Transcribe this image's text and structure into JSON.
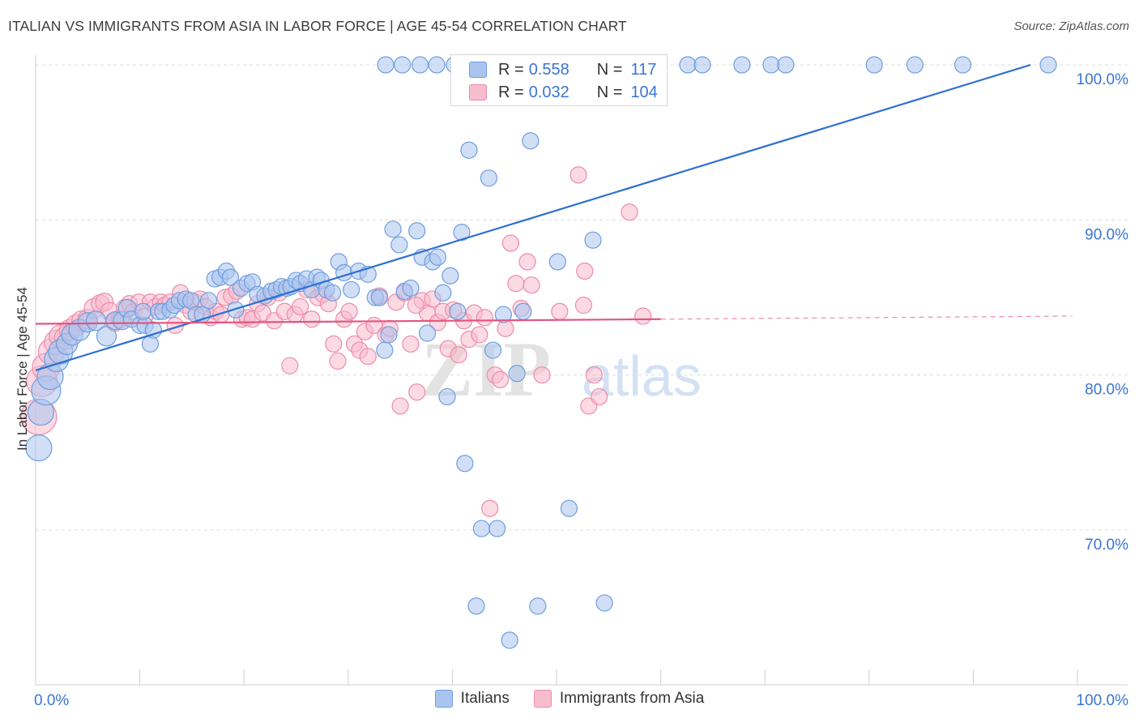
{
  "header": {
    "title": "ITALIAN VS IMMIGRANTS FROM ASIA IN LABOR FORCE | AGE 45-54 CORRELATION CHART",
    "source": "Source: ZipAtlas.com"
  },
  "watermark": {
    "zip": "ZIP",
    "atlas": "atlas"
  },
  "legend_box": {
    "rows": [
      {
        "r_label": "R = ",
        "r_value": "0.558",
        "n_label": "N = ",
        "n_value": "117"
      },
      {
        "r_label": "R = ",
        "r_value": "0.032",
        "n_label": "N = ",
        "n_value": "104"
      }
    ]
  },
  "bottom_legend": {
    "items": [
      "Italians",
      "Immigrants from Asia"
    ]
  },
  "colors": {
    "italians_fill": "#a9c5ef",
    "italians_stroke": "#6f9de0",
    "italians_line": "#2f6fd1",
    "asia_fill": "#f7bccd",
    "asia_stroke": "#ee8ba8",
    "asia_line": "#e4557f",
    "axis_text": "#3a74d4",
    "grid": "#dcdcdc"
  },
  "chart_data": {
    "type": "scatter",
    "title": "ITALIAN VS IMMIGRANTS FROM ASIA IN LABOR FORCE | AGE 45-54 CORRELATION CHART",
    "xlabel": "",
    "ylabel": "In Labor Force | Age 45-54",
    "xlim": [
      0,
      100
    ],
    "ylim": [
      60.5,
      101.5
    ],
    "x_tick_labels": [
      "0.0%",
      "100.0%"
    ],
    "y_ticks": [
      70,
      80,
      90,
      100
    ],
    "y_tick_labels": [
      "70.0%",
      "80.0%",
      "90.0%",
      "100.0%"
    ],
    "grid": true,
    "legend_placement": "bottom-center",
    "series": [
      {
        "name": "Italians",
        "r": 0.558,
        "n": 117,
        "trend": {
          "x": [
            0,
            95.5
          ],
          "y": [
            80.3,
            100.0
          ]
        },
        "points": [
          [
            0.3,
            75.3,
            1.6
          ],
          [
            0.5,
            77.6,
            1.6
          ],
          [
            1.0,
            79.0,
            1.8
          ],
          [
            1.4,
            79.9,
            1.6
          ],
          [
            2.0,
            81.0,
            1.5
          ],
          [
            2.4,
            81.5,
            1.5
          ],
          [
            3.0,
            82.0,
            1.3
          ],
          [
            3.5,
            82.6,
            1.3
          ],
          [
            4.2,
            82.9,
            1.3
          ],
          [
            5.0,
            83.4,
            1.2
          ],
          [
            5.8,
            83.5,
            1.2
          ],
          [
            6.8,
            82.5,
            1.2
          ],
          [
            7.6,
            83.5,
            1.1
          ],
          [
            8.3,
            83.5,
            1.1
          ],
          [
            8.8,
            84.3,
            1.1
          ],
          [
            9.2,
            83.6,
            1.0
          ],
          [
            10.0,
            83.2,
            1.0
          ],
          [
            10.5,
            83.2,
            1.0
          ],
          [
            10.3,
            84.1,
            1.0
          ],
          [
            11.0,
            82.0,
            1.0
          ],
          [
            11.3,
            82.9,
            1.0
          ],
          [
            11.8,
            84.1,
            1.0
          ],
          [
            12.2,
            84.1,
            1.0
          ],
          [
            12.9,
            84.2,
            1.0
          ],
          [
            13.3,
            84.5,
            1.0
          ],
          [
            13.8,
            84.8,
            1.0
          ],
          [
            14.4,
            84.9,
            1.0
          ],
          [
            14.9,
            84.8,
            1.0
          ],
          [
            15.4,
            83.9,
            1.0
          ],
          [
            16.0,
            83.9,
            1.0
          ],
          [
            16.6,
            84.8,
            1.0
          ],
          [
            17.2,
            86.2,
            1.0
          ],
          [
            17.7,
            86.3,
            1.0
          ],
          [
            18.3,
            86.7,
            1.0
          ],
          [
            18.7,
            86.3,
            1.0
          ],
          [
            19.2,
            84.2,
            1.0
          ],
          [
            19.7,
            85.6,
            1.0
          ],
          [
            20.3,
            85.9,
            1.0
          ],
          [
            20.8,
            86.0,
            1.0
          ],
          [
            21.3,
            85.2,
            1.0
          ],
          [
            22.0,
            85.1,
            1.0
          ],
          [
            22.6,
            85.4,
            1.0
          ],
          [
            23.1,
            85.5,
            1.0
          ],
          [
            23.6,
            85.7,
            1.0
          ],
          [
            24.1,
            85.6,
            1.0
          ],
          [
            24.5,
            85.7,
            1.0
          ],
          [
            25.0,
            86.1,
            1.0
          ],
          [
            25.4,
            85.9,
            1.0
          ],
          [
            26.0,
            86.2,
            1.0
          ],
          [
            26.5,
            85.5,
            1.0
          ],
          [
            27.0,
            86.3,
            1.0
          ],
          [
            27.4,
            86.1,
            1.0
          ],
          [
            27.9,
            85.5,
            1.0
          ],
          [
            28.5,
            85.3,
            1.0
          ],
          [
            29.1,
            87.3,
            1.0
          ],
          [
            29.6,
            86.6,
            1.0
          ],
          [
            30.3,
            85.5,
            1.0
          ],
          [
            31.0,
            86.7,
            1.0
          ],
          [
            31.9,
            86.5,
            1.0
          ],
          [
            32.6,
            85.0,
            1.0
          ],
          [
            33.0,
            85.0,
            1.0
          ],
          [
            33.5,
            81.6,
            1.0
          ],
          [
            33.9,
            82.6,
            1.0
          ],
          [
            34.3,
            89.4,
            1.0
          ],
          [
            34.9,
            88.4,
            1.0
          ],
          [
            35.4,
            85.4,
            1.0
          ],
          [
            36.0,
            85.6,
            1.0
          ],
          [
            36.6,
            89.3,
            1.0
          ],
          [
            37.1,
            87.6,
            1.0
          ],
          [
            37.6,
            82.7,
            1.0
          ],
          [
            38.1,
            87.3,
            1.0
          ],
          [
            38.6,
            87.6,
            1.0
          ],
          [
            39.1,
            85.3,
            1.0
          ],
          [
            39.5,
            78.6,
            1.0
          ],
          [
            39.8,
            86.4,
            1.0
          ],
          [
            40.5,
            84.1,
            1.0
          ],
          [
            40.9,
            89.2,
            1.0
          ],
          [
            41.2,
            74.3,
            1.0
          ],
          [
            41.6,
            94.5,
            1.0
          ],
          [
            42.3,
            65.1,
            1.0
          ],
          [
            42.8,
            70.1,
            1.0
          ],
          [
            43.5,
            92.7,
            1.0
          ],
          [
            43.9,
            81.6,
            1.0
          ],
          [
            44.3,
            70.1,
            1.0
          ],
          [
            44.9,
            83.9,
            1.0
          ],
          [
            45.5,
            62.9,
            1.0
          ],
          [
            46.2,
            80.1,
            1.0
          ],
          [
            46.8,
            84.1,
            1.0
          ],
          [
            47.5,
            95.1,
            1.0
          ],
          [
            48.2,
            65.1,
            1.0
          ],
          [
            50.1,
            87.3,
            1.0
          ],
          [
            51.2,
            71.4,
            1.0
          ],
          [
            53.5,
            88.7,
            1.0
          ],
          [
            54.6,
            65.3,
            1.0
          ],
          [
            55.2,
            100.0,
            1.0
          ],
          [
            57.0,
            100.0,
            1.0
          ],
          [
            46.5,
            100.0,
            1.0
          ],
          [
            47.8,
            100.0,
            1.0
          ],
          [
            49.0,
            100.0,
            1.0
          ],
          [
            50.5,
            100.0,
            1.0
          ],
          [
            51.8,
            100.0,
            1.0
          ],
          [
            53.0,
            100.0,
            1.0
          ],
          [
            41.8,
            100.0,
            1.0
          ],
          [
            40.2,
            100.0,
            1.0
          ],
          [
            38.5,
            100.0,
            1.0
          ],
          [
            36.9,
            100.0,
            1.0
          ],
          [
            35.2,
            100.0,
            1.0
          ],
          [
            33.6,
            100.0,
            1.0
          ],
          [
            57.8,
            100.0,
            1.0
          ],
          [
            62.6,
            100.0,
            1.0
          ],
          [
            64.0,
            100.0,
            1.0
          ],
          [
            67.8,
            100.0,
            1.0
          ],
          [
            70.6,
            100.0,
            1.0
          ],
          [
            72.0,
            100.0,
            1.0
          ],
          [
            80.5,
            100.0,
            1.0
          ],
          [
            84.4,
            100.0,
            1.0
          ],
          [
            89.0,
            100.0,
            1.0
          ],
          [
            97.2,
            100.0,
            1.0
          ],
          [
            55.8,
            100.0,
            1.0
          ]
        ]
      },
      {
        "name": "Immigrants from Asia",
        "r": 0.032,
        "n": 104,
        "trend": {
          "x": [
            0,
            60
          ],
          "y": [
            83.3,
            83.6
          ]
        },
        "trend_dashed": {
          "x": [
            60,
            99.5
          ],
          "y": [
            83.6,
            83.8
          ]
        },
        "points": [
          [
            0.3,
            77.3,
            2.2
          ],
          [
            0.6,
            79.6,
            1.9
          ],
          [
            1.0,
            80.5,
            1.7
          ],
          [
            1.5,
            81.5,
            1.6
          ],
          [
            2.0,
            82.1,
            1.5
          ],
          [
            2.4,
            82.5,
            1.4
          ],
          [
            2.9,
            82.4,
            1.4
          ],
          [
            3.3,
            82.9,
            1.3
          ],
          [
            3.9,
            83.2,
            1.3
          ],
          [
            4.4,
            83.5,
            1.2
          ],
          [
            5.0,
            83.6,
            1.2
          ],
          [
            5.6,
            84.3,
            1.2
          ],
          [
            6.2,
            84.6,
            1.1
          ],
          [
            6.6,
            84.7,
            1.1
          ],
          [
            7.1,
            84.1,
            1.1
          ],
          [
            7.6,
            83.4,
            1.1
          ],
          [
            8.1,
            83.6,
            1.1
          ],
          [
            8.6,
            84.3,
            1.1
          ],
          [
            9.0,
            84.6,
            1.0
          ],
          [
            9.4,
            84.1,
            1.0
          ],
          [
            9.9,
            84.7,
            1.0
          ],
          [
            10.5,
            83.8,
            1.0
          ],
          [
            11.0,
            84.7,
            1.0
          ],
          [
            11.5,
            84.4,
            1.0
          ],
          [
            12.0,
            84.7,
            1.0
          ],
          [
            12.4,
            84.5,
            1.0
          ],
          [
            12.9,
            84.7,
            1.0
          ],
          [
            13.4,
            83.2,
            1.0
          ],
          [
            13.9,
            85.3,
            1.0
          ],
          [
            14.4,
            84.5,
            1.0
          ],
          [
            14.9,
            84.1,
            1.0
          ],
          [
            15.3,
            84.7,
            1.0
          ],
          [
            15.8,
            84.9,
            1.0
          ],
          [
            16.3,
            84.4,
            1.0
          ],
          [
            16.8,
            83.7,
            1.0
          ],
          [
            17.3,
            84.1,
            1.0
          ],
          [
            17.8,
            83.9,
            1.0
          ],
          [
            18.2,
            85.0,
            1.0
          ],
          [
            18.8,
            85.1,
            1.0
          ],
          [
            19.3,
            85.4,
            1.0
          ],
          [
            19.8,
            83.6,
            1.0
          ],
          [
            20.3,
            83.7,
            1.0
          ],
          [
            20.8,
            83.6,
            1.0
          ],
          [
            21.3,
            84.6,
            1.0
          ],
          [
            21.8,
            84.0,
            1.0
          ],
          [
            22.3,
            85.0,
            1.0
          ],
          [
            22.9,
            83.5,
            1.0
          ],
          [
            23.4,
            85.3,
            1.0
          ],
          [
            23.9,
            84.1,
            1.0
          ],
          [
            24.4,
            80.6,
            1.0
          ],
          [
            24.9,
            83.9,
            1.0
          ],
          [
            25.4,
            84.4,
            1.0
          ],
          [
            26.0,
            85.5,
            1.0
          ],
          [
            26.5,
            83.6,
            1.0
          ],
          [
            27.1,
            85.0,
            1.0
          ],
          [
            27.6,
            85.2,
            1.0
          ],
          [
            28.1,
            84.6,
            1.0
          ],
          [
            28.6,
            82.0,
            1.0
          ],
          [
            29.0,
            80.9,
            1.0
          ],
          [
            29.6,
            83.6,
            1.0
          ],
          [
            30.1,
            84.1,
            1.0
          ],
          [
            30.6,
            82.0,
            1.0
          ],
          [
            31.1,
            81.6,
            1.0
          ],
          [
            31.6,
            82.8,
            1.0
          ],
          [
            31.9,
            81.2,
            1.0
          ],
          [
            32.5,
            83.2,
            1.0
          ],
          [
            33.0,
            85.1,
            1.0
          ],
          [
            33.6,
            82.6,
            1.0
          ],
          [
            34.0,
            83.0,
            1.0
          ],
          [
            34.6,
            84.7,
            1.0
          ],
          [
            35.0,
            78.0,
            1.0
          ],
          [
            35.4,
            85.3,
            1.0
          ],
          [
            36.0,
            82.0,
            1.0
          ],
          [
            36.6,
            78.9,
            1.0
          ],
          [
            37.1,
            84.8,
            1.0
          ],
          [
            37.6,
            84.0,
            1.0
          ],
          [
            38.1,
            84.9,
            1.0
          ],
          [
            38.6,
            83.4,
            1.0
          ],
          [
            39.1,
            84.1,
            1.0
          ],
          [
            39.6,
            81.7,
            1.0
          ],
          [
            40.1,
            84.2,
            1.0
          ],
          [
            40.6,
            81.3,
            1.0
          ],
          [
            41.1,
            83.5,
            1.0
          ],
          [
            41.6,
            82.3,
            1.0
          ],
          [
            42.1,
            84.0,
            1.0
          ],
          [
            42.6,
            82.6,
            1.0
          ],
          [
            43.1,
            83.7,
            1.0
          ],
          [
            43.6,
            71.4,
            1.0
          ],
          [
            44.1,
            80.0,
            1.0
          ],
          [
            44.6,
            79.7,
            1.0
          ],
          [
            45.1,
            83.0,
            1.0
          ],
          [
            45.6,
            88.5,
            1.0
          ],
          [
            46.1,
            85.9,
            1.0
          ],
          [
            46.6,
            84.3,
            1.0
          ],
          [
            47.2,
            87.3,
            1.0
          ],
          [
            47.6,
            85.8,
            1.0
          ],
          [
            48.6,
            80.0,
            1.0
          ],
          [
            50.3,
            84.1,
            1.0
          ],
          [
            52.1,
            92.9,
            1.0
          ],
          [
            52.7,
            86.7,
            1.0
          ],
          [
            52.6,
            84.5,
            1.0
          ],
          [
            53.1,
            78.0,
            1.0
          ],
          [
            53.6,
            80.0,
            1.0
          ],
          [
            54.1,
            78.6,
            1.0
          ],
          [
            57.0,
            90.5,
            1.0
          ],
          [
            58.3,
            83.8,
            1.0
          ],
          [
            36.5,
            84.5,
            1.0
          ]
        ]
      }
    ]
  }
}
